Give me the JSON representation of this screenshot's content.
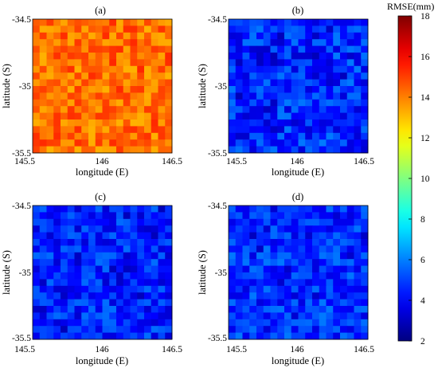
{
  "colorbar": {
    "title": "RMSE(mm)",
    "range": [
      2,
      18
    ],
    "ticks": [
      "2",
      "4",
      "6",
      "8",
      "10",
      "12",
      "14",
      "16",
      "18"
    ]
  },
  "chart_data": [
    {
      "type": "heatmap",
      "title": "(a)",
      "xlabel": "longitude (E)",
      "ylabel": "latitude (S)",
      "xlim": [
        145.5,
        146.5
      ],
      "ylim": [
        -35.5,
        -34.5
      ],
      "xticks": [
        "145.5",
        "146",
        "146.5"
      ],
      "yticks": [
        "-34.5",
        "-35",
        "-35.5"
      ],
      "grid": {
        "rows": 20,
        "cols": 20
      },
      "value_summary": {
        "mean": 14.3,
        "min": 13.2,
        "max": 16.0
      }
    },
    {
      "type": "heatmap",
      "title": "(b)",
      "xlabel": "longitude (E)",
      "ylabel": "latitude (S)",
      "xlim": [
        145.5,
        146.5
      ],
      "ylim": [
        -35.5,
        -34.5
      ],
      "xticks": [
        "145.5",
        "146",
        "146.5"
      ],
      "yticks": [
        "-34.5",
        "-35",
        "-35.5"
      ],
      "grid": {
        "rows": 20,
        "cols": 20
      },
      "value_summary": {
        "mean": 4.6,
        "min": 2.9,
        "max": 6.2
      }
    },
    {
      "type": "heatmap",
      "title": "(c)",
      "xlabel": "longitude (E)",
      "ylabel": "latitude (S)",
      "xlim": [
        145.5,
        146.5
      ],
      "ylim": [
        -35.5,
        -34.5
      ],
      "xticks": [
        "145.5",
        "146",
        "146.5"
      ],
      "yticks": [
        "-34.5",
        "-35",
        "-35.5"
      ],
      "grid": {
        "rows": 20,
        "cols": 20
      },
      "value_summary": {
        "mean": 4.5,
        "min": 2.9,
        "max": 6.0
      }
    },
    {
      "type": "heatmap",
      "title": "(d)",
      "xlabel": "longitude (E)",
      "ylabel": "latitude (S)",
      "xlim": [
        145.5,
        146.5
      ],
      "ylim": [
        -35.5,
        -34.5
      ],
      "xticks": [
        "145.5",
        "146",
        "146.5"
      ],
      "yticks": [
        "-34.5",
        "-35",
        "-35.5"
      ],
      "grid": {
        "rows": 20,
        "cols": 20
      },
      "value_summary": {
        "mean": 4.7,
        "min": 3.0,
        "max": 6.0
      }
    }
  ]
}
